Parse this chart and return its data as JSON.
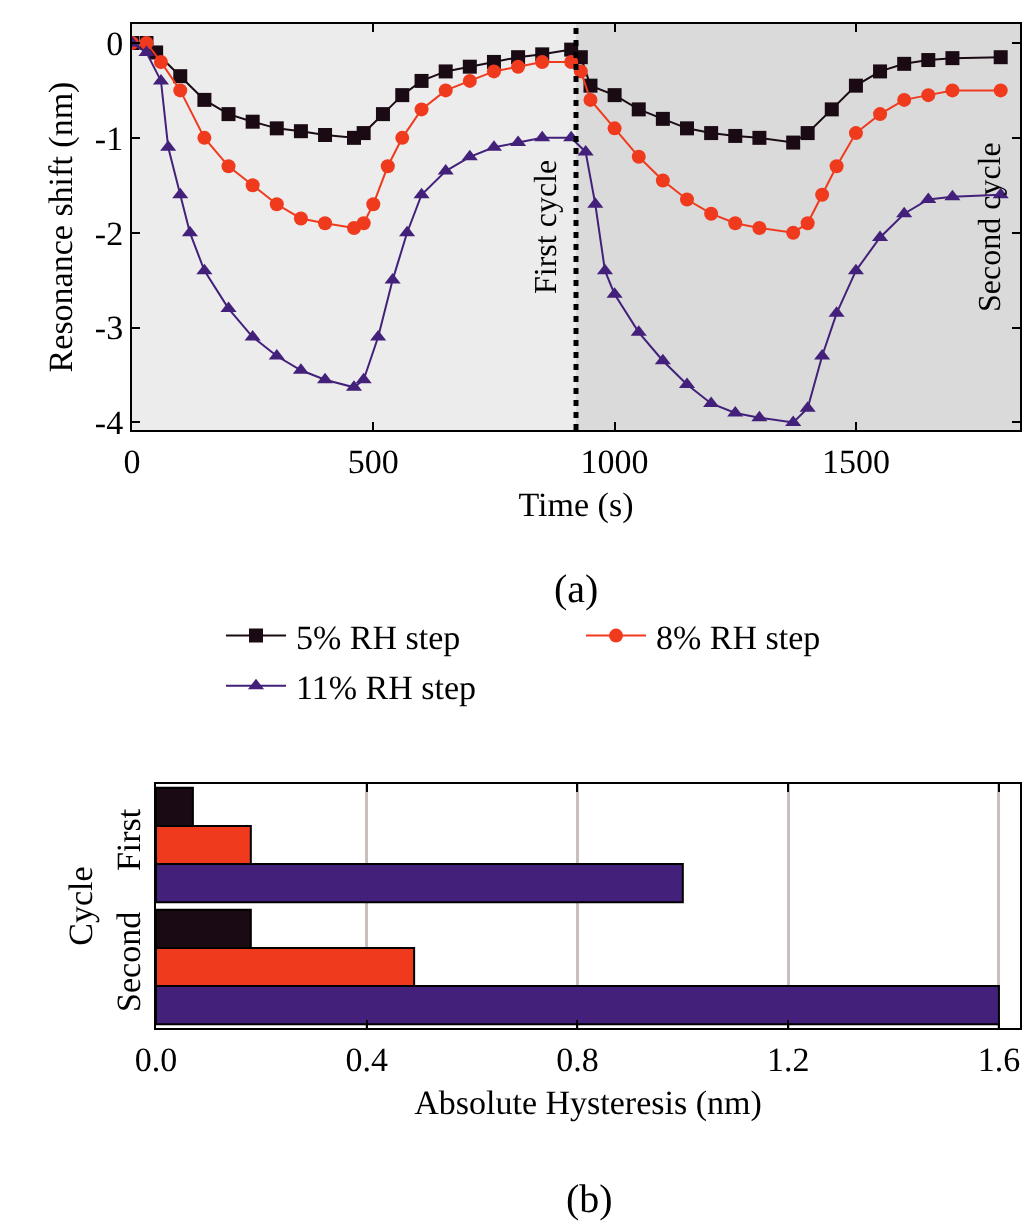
{
  "chart_data": [
    {
      "type": "line",
      "xlabel": "Time (s)",
      "ylabel": "Resonance shift (nm)",
      "xlim": [
        0,
        1840
      ],
      "ylim": [
        -4.08,
        0.2
      ],
      "xticks": [
        0,
        500,
        1000,
        1500
      ],
      "yticks": [
        0,
        -1,
        -2,
        -3,
        -4
      ],
      "grid": false,
      "legend": "bottom",
      "line_style": "solid",
      "annotations": [
        "(a)"
      ],
      "bands": [
        {
          "axis": "x",
          "from": 0,
          "to": 920,
          "label": "First cycle",
          "color": "#ececec"
        },
        {
          "axis": "x",
          "from": 920,
          "to": 1840,
          "label": "Second cycle",
          "color": "#dadada"
        }
      ],
      "ref_lines": [
        {
          "axis": "x",
          "value": 920,
          "line_style": "dotted",
          "color": "#000000"
        }
      ],
      "series": [
        {
          "name": "5% RH step",
          "color": "#1a0a14",
          "marker": "square",
          "x": [
            0,
            30,
            50,
            100,
            150,
            200,
            250,
            300,
            350,
            400,
            460,
            480,
            520,
            560,
            600,
            650,
            700,
            750,
            800,
            850,
            910,
            930,
            950,
            1000,
            1050,
            1100,
            1150,
            1200,
            1250,
            1300,
            1370,
            1400,
            1450,
            1500,
            1550,
            1600,
            1650,
            1700,
            1800
          ],
          "values": [
            0,
            0,
            -0.1,
            -0.35,
            -0.6,
            -0.75,
            -0.83,
            -0.9,
            -0.93,
            -0.97,
            -1.0,
            -0.95,
            -0.75,
            -0.55,
            -0.4,
            -0.3,
            -0.25,
            -0.2,
            -0.15,
            -0.12,
            -0.07,
            -0.15,
            -0.45,
            -0.55,
            -0.7,
            -0.8,
            -0.9,
            -0.95,
            -0.98,
            -1.0,
            -1.05,
            -0.95,
            -0.7,
            -0.45,
            -0.3,
            -0.22,
            -0.18,
            -0.16,
            -0.15
          ]
        },
        {
          "name": "8% RH step",
          "color": "#f03a1e",
          "marker": "circle",
          "x": [
            0,
            30,
            60,
            100,
            150,
            200,
            250,
            300,
            350,
            400,
            460,
            480,
            500,
            530,
            560,
            600,
            650,
            700,
            750,
            800,
            850,
            910,
            930,
            950,
            1000,
            1050,
            1100,
            1150,
            1200,
            1250,
            1300,
            1370,
            1400,
            1430,
            1460,
            1500,
            1550,
            1600,
            1650,
            1700,
            1800
          ],
          "values": [
            0,
            0,
            -0.2,
            -0.5,
            -1.0,
            -1.3,
            -1.5,
            -1.7,
            -1.85,
            -1.9,
            -1.95,
            -1.9,
            -1.7,
            -1.3,
            -1.0,
            -0.7,
            -0.5,
            -0.4,
            -0.3,
            -0.25,
            -0.2,
            -0.2,
            -0.3,
            -0.6,
            -0.9,
            -1.2,
            -1.45,
            -1.65,
            -1.8,
            -1.9,
            -1.95,
            -2.0,
            -1.9,
            -1.6,
            -1.3,
            -0.95,
            -0.75,
            -0.6,
            -0.55,
            -0.5,
            -0.5
          ]
        },
        {
          "name": "11% RH step",
          "color": "#43207a",
          "marker": "triangle",
          "x": [
            0,
            30,
            60,
            75,
            100,
            120,
            150,
            200,
            250,
            300,
            350,
            400,
            460,
            480,
            510,
            540,
            570,
            600,
            650,
            700,
            750,
            800,
            850,
            910,
            940,
            960,
            980,
            1000,
            1050,
            1100,
            1150,
            1200,
            1250,
            1300,
            1370,
            1400,
            1430,
            1460,
            1500,
            1550,
            1600,
            1650,
            1700,
            1800
          ],
          "values": [
            0,
            -0.1,
            -0.4,
            -1.1,
            -1.6,
            -2.0,
            -2.4,
            -2.8,
            -3.1,
            -3.3,
            -3.45,
            -3.55,
            -3.63,
            -3.55,
            -3.1,
            -2.5,
            -2.0,
            -1.6,
            -1.35,
            -1.2,
            -1.1,
            -1.05,
            -1.0,
            -1.0,
            -1.15,
            -1.7,
            -2.4,
            -2.65,
            -3.05,
            -3.35,
            -3.6,
            -3.8,
            -3.9,
            -3.95,
            -4.0,
            -3.85,
            -3.3,
            -2.85,
            -2.4,
            -2.05,
            -1.8,
            -1.65,
            -1.62,
            -1.6
          ]
        }
      ]
    },
    {
      "type": "bar",
      "orientation": "horizontal",
      "xlabel": "Absolute Hysteresis (nm)",
      "ylabel": "Cycle",
      "categories": [
        "First",
        "Second"
      ],
      "xlim": [
        0,
        1.64
      ],
      "xticks": [
        {
          "value": 0,
          "label": "0.0"
        },
        0.4,
        0.8,
        1.2,
        1.6
      ],
      "grid": "x",
      "legend": false,
      "annotations": [
        "(b)"
      ],
      "series": [
        {
          "color": "#1a0a14",
          "values": [
            0.07,
            0.18
          ]
        },
        {
          "color": "#f03a1e",
          "values": [
            0.18,
            0.49
          ]
        },
        {
          "color": "#43207a",
          "values": [
            1.0,
            1.6
          ]
        }
      ]
    }
  ]
}
